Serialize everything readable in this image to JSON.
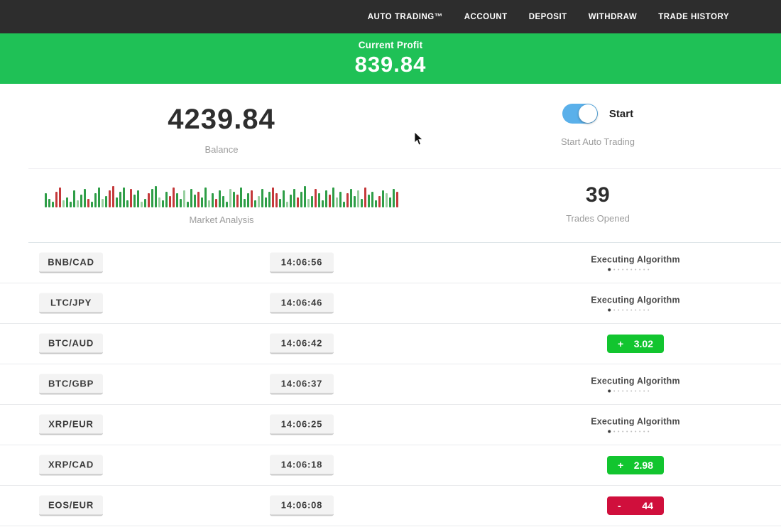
{
  "navbar": {
    "items": [
      "AUTO TRADING™",
      "ACCOUNT",
      "DEPOSIT",
      "WITHDRAW",
      "TRADE HISTORY"
    ]
  },
  "profit_banner": {
    "label": "Current Profit",
    "value": "839.84",
    "bg_color": "#1fc156"
  },
  "stats": {
    "balance": {
      "value": "4239.84",
      "label": "Balance"
    },
    "auto_trading": {
      "toggle_label": "Start",
      "label": "Start Auto Trading",
      "toggle_on": true,
      "toggle_color": "#5ab0ea"
    },
    "market_analysis": {
      "label": "Market Analysis",
      "bars": [
        "g20",
        "g12",
        "g8",
        "r22",
        "r28",
        "lg10",
        "g14",
        "g8",
        "g24",
        "lg10",
        "g18",
        "g26",
        "r12",
        "g8",
        "g20",
        "g28",
        "lg12",
        "g16",
        "r24",
        "r30",
        "g14",
        "g22",
        "g28",
        "g10",
        "r26",
        "g18",
        "g24",
        "lg8",
        "g12",
        "r20",
        "g26",
        "g30",
        "lg14",
        "g10",
        "g22",
        "r16",
        "r28",
        "g20",
        "g12",
        "lg24",
        "g8",
        "g26",
        "g18",
        "r22",
        "g14",
        "g28",
        "lg10",
        "g20",
        "r12",
        "g24",
        "g16",
        "g8",
        "lg26",
        "g22",
        "r18",
        "g28",
        "g12",
        "g20",
        "r24",
        "g10",
        "lg16",
        "g26",
        "g14",
        "g22",
        "r28",
        "r20",
        "g12",
        "g24",
        "lg8",
        "g18",
        "g26",
        "r14",
        "g22",
        "g30",
        "lg12",
        "g16",
        "r26",
        "g20",
        "g10",
        "g24",
        "r18",
        "g28",
        "lg14",
        "g22",
        "g8",
        "r20",
        "g26",
        "g16",
        "lg24",
        "g12",
        "r28",
        "g18",
        "g22",
        "g10",
        "r16",
        "g24",
        "lg20",
        "g14",
        "g26",
        "r22"
      ],
      "bar_colors": {
        "g": "#2e9e47",
        "r": "#c4393b",
        "lg": "#98cf9f"
      }
    },
    "trades_opened": {
      "value": "39",
      "label": "Trades Opened"
    }
  },
  "trades": [
    {
      "pair": "BNB/CAD",
      "time": "14:06:56",
      "status": "executing",
      "label": "Executing Algorithm"
    },
    {
      "pair": "LTC/JPY",
      "time": "14:06:46",
      "status": "executing",
      "label": "Executing Algorithm"
    },
    {
      "pair": "BTC/AUD",
      "time": "14:06:42",
      "status": "profit",
      "sign": "+",
      "value": "3.02"
    },
    {
      "pair": "BTC/GBP",
      "time": "14:06:37",
      "status": "executing",
      "label": "Executing Algorithm"
    },
    {
      "pair": "XRP/EUR",
      "time": "14:06:25",
      "status": "executing",
      "label": "Executing Algorithm"
    },
    {
      "pair": "XRP/CAD",
      "time": "14:06:18",
      "status": "profit",
      "sign": "+",
      "value": "2.98"
    },
    {
      "pair": "EOS/EUR",
      "time": "14:06:08",
      "status": "loss",
      "sign": "-",
      "value": "44"
    }
  ],
  "colors": {
    "nav_bg": "#2d2d2d",
    "profit_badge": "#12c52f",
    "loss_badge": "#d00f3c",
    "banner_green": "#1fc156",
    "toggle_blue": "#5ab0ea"
  }
}
